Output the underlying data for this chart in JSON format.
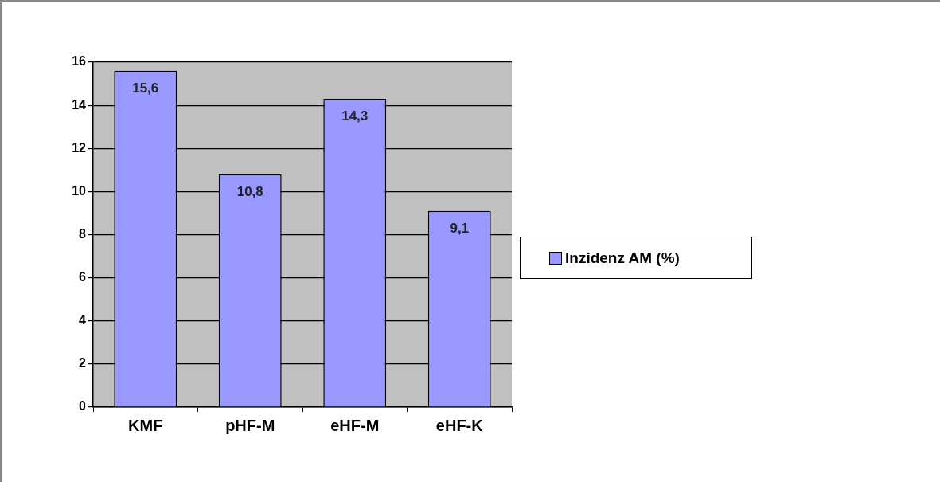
{
  "chart_data": {
    "type": "bar",
    "categories": [
      "KMF",
      "pHF-M",
      "eHF-M",
      "eHF-K"
    ],
    "series": [
      {
        "name": "Inzidenz AM (%)",
        "color": "#9999ff",
        "values": [
          15.6,
          10.8,
          14.3,
          9.1
        ],
        "value_labels": [
          "15,6",
          "10,8",
          "14,3",
          "9,1"
        ]
      }
    ],
    "ylim": [
      0,
      16
    ],
    "yticks": [
      0,
      2,
      4,
      6,
      8,
      10,
      12,
      14,
      16
    ],
    "grid": "y",
    "legend": "right"
  }
}
